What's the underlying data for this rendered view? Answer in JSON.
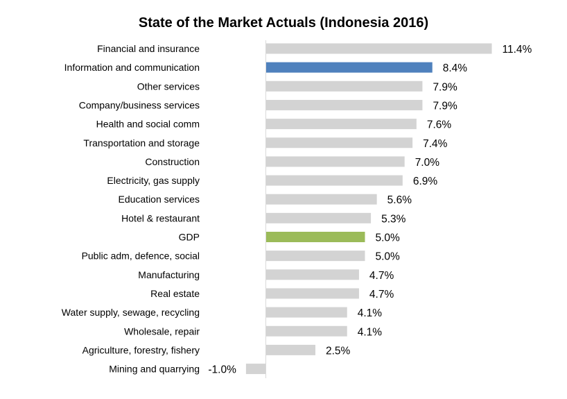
{
  "chart_data": {
    "type": "bar",
    "orientation": "horizontal",
    "title": "State of the Market Actuals (Indonesia 2016)",
    "xlabel": "",
    "ylabel": "",
    "grid": false,
    "legend": "none",
    "xlim": [
      -1.0,
      11.4
    ],
    "categories": [
      "Financial and insurance",
      "Information and communication",
      "Other services",
      "Company/business services",
      "Health and social comm",
      "Transportation and storage",
      "Construction",
      "Electricity, gas supply",
      "Education services",
      "Hotel & restaurant",
      "GDP",
      "Public adm, defence, social",
      "Manufacturing",
      "Real estate",
      "Water supply, sewage, recycling",
      "Wholesale, repair",
      "Agriculture, forestry, fishery",
      "Mining and quarrying"
    ],
    "values": [
      11.4,
      8.4,
      7.9,
      7.9,
      7.6,
      7.4,
      7.0,
      6.9,
      5.6,
      5.3,
      5.0,
      5.0,
      4.7,
      4.7,
      4.1,
      4.1,
      2.5,
      -1.0
    ],
    "value_labels": [
      "11.4%",
      "8.4%",
      "7.9%",
      "7.9%",
      "7.6%",
      "7.4%",
      "7.0%",
      "6.9%",
      "5.6%",
      "5.3%",
      "5.0%",
      "5.0%",
      "4.7%",
      "4.7%",
      "4.1%",
      "4.1%",
      "2.5%",
      "-1.0%"
    ],
    "bar_colors": [
      "#d3d3d3",
      "#4f81bd",
      "#d3d3d3",
      "#d3d3d3",
      "#d3d3d3",
      "#d3d3d3",
      "#d3d3d3",
      "#d3d3d3",
      "#d3d3d3",
      "#d3d3d3",
      "#9bbb59",
      "#d3d3d3",
      "#d3d3d3",
      "#d3d3d3",
      "#d3d3d3",
      "#d3d3d3",
      "#d3d3d3",
      "#d3d3d3"
    ],
    "axis_color": "#d9d9d9"
  }
}
